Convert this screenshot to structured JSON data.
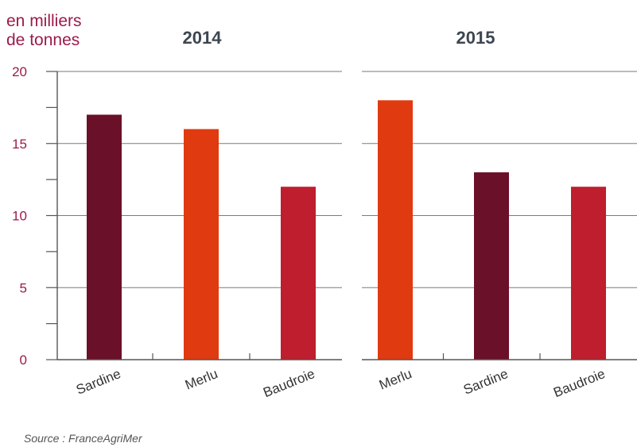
{
  "unit_label": [
    "en milliers",
    "de tonnes"
  ],
  "source": "Source : FranceAgriMer",
  "colors": {
    "dark_red": "#6b1029",
    "orange_red": "#e03a10",
    "crimson": "#be1e2d",
    "unit_text": "#9b1b4a"
  },
  "chart_data": [
    {
      "type": "bar",
      "title": "2014",
      "categories": [
        "Sardine",
        "Merlu",
        "Baudroie"
      ],
      "values": [
        17,
        16,
        12
      ],
      "colors": [
        "#6b1029",
        "#e03a10",
        "#be1e2d"
      ],
      "ylim": [
        0,
        20
      ],
      "yticks": [
        0,
        5,
        10,
        15,
        20
      ],
      "grid": true
    },
    {
      "type": "bar",
      "title": "2015",
      "categories": [
        "Merlu",
        "Sardine",
        "Baudroie"
      ],
      "values": [
        18,
        13,
        12
      ],
      "colors": [
        "#e03a10",
        "#6b1029",
        "#be1e2d"
      ],
      "ylim": [
        0,
        20
      ],
      "yticks": [
        0,
        5,
        10,
        15,
        20
      ],
      "grid": true
    }
  ]
}
